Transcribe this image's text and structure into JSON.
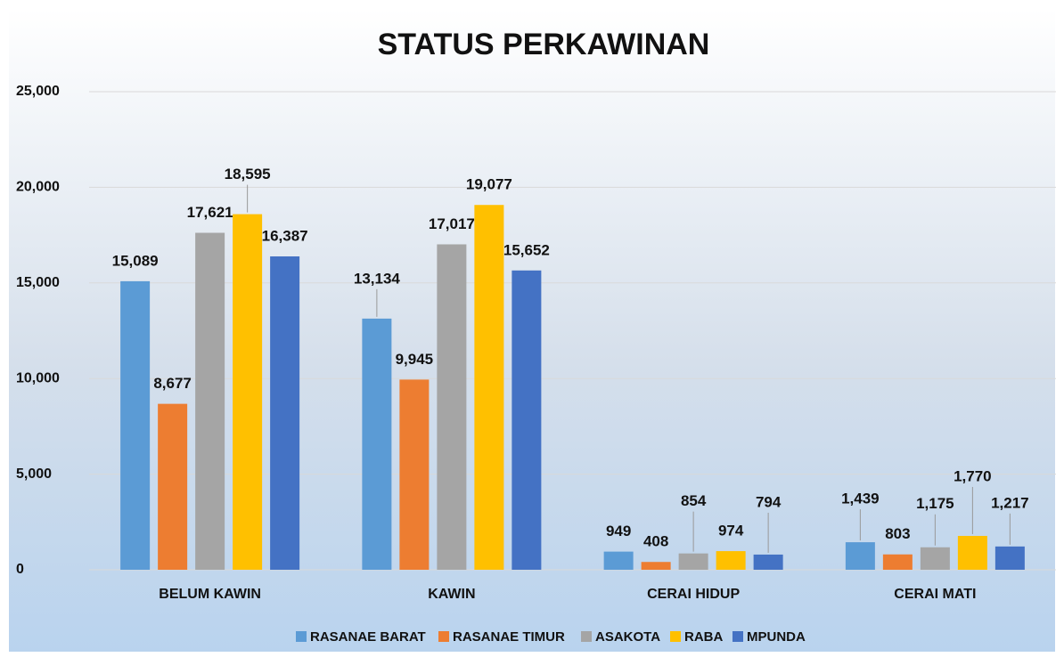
{
  "chart_data": {
    "type": "bar",
    "title": "STATUS PERKAWINAN",
    "categories": [
      "BELUM KAWIN",
      "KAWIN",
      "CERAI HIDUP",
      "CERAI MATI"
    ],
    "series": [
      {
        "name": "RASANAE BARAT",
        "color": "#5b9bd5",
        "values": [
          15089,
          13134,
          949,
          1439
        ],
        "value_labels": [
          "15,089",
          "13,134",
          "949",
          "1,439"
        ]
      },
      {
        "name": "RASANAE TIMUR",
        "color": "#ed7d31",
        "values": [
          8677,
          9945,
          408,
          803
        ],
        "value_labels": [
          "8,677",
          "9,945",
          "408",
          "803"
        ]
      },
      {
        "name": "ASAKOTA",
        "color": "#a5a5a5",
        "values": [
          17621,
          17017,
          854,
          1175
        ],
        "value_labels": [
          "17,621",
          "17,017",
          "854",
          "1,175"
        ]
      },
      {
        "name": "RABA",
        "color": "#ffc000",
        "values": [
          18595,
          19077,
          974,
          1770
        ],
        "value_labels": [
          "18,595",
          "19,077",
          "974",
          "1,770"
        ]
      },
      {
        "name": "MPUNDA",
        "color": "#4472c4",
        "values": [
          16387,
          15652,
          794,
          1217
        ],
        "value_labels": [
          "16,387",
          "15,652",
          "794",
          "1,217"
        ]
      }
    ],
    "ylim": [
      0,
      25000
    ],
    "yticks": [
      {
        "value": 0,
        "label": "0"
      },
      {
        "value": 5000,
        "label": "5,000"
      },
      {
        "value": 10000,
        "label": "10,000"
      },
      {
        "value": 15000,
        "label": "15,000"
      },
      {
        "value": 20000,
        "label": "20,000"
      },
      {
        "value": 25000,
        "label": "25,000"
      }
    ],
    "grid": true,
    "legend": "bottom"
  }
}
